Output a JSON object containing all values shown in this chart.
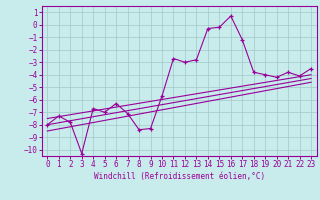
{
  "xlabel": "Windchill (Refroidissement éolien,°C)",
  "bg_color": "#c8ecec",
  "grid_color": "#a0c8c8",
  "line_color": "#990099",
  "xlim": [
    -0.5,
    23.5
  ],
  "ylim": [
    -10.5,
    1.5
  ],
  "xticks": [
    0,
    1,
    2,
    3,
    4,
    5,
    6,
    7,
    8,
    9,
    10,
    11,
    12,
    13,
    14,
    15,
    16,
    17,
    18,
    19,
    20,
    21,
    22,
    23
  ],
  "yticks": [
    1,
    0,
    -1,
    -2,
    -3,
    -4,
    -5,
    -6,
    -7,
    -8,
    -9,
    -10
  ],
  "main_x": [
    0,
    1,
    2,
    3,
    4,
    5,
    6,
    7,
    8,
    9,
    10,
    11,
    12,
    13,
    14,
    15,
    16,
    17,
    18,
    19,
    20,
    21,
    22,
    23
  ],
  "main_y": [
    -8.0,
    -7.3,
    -7.8,
    -10.3,
    -6.7,
    -7.0,
    -6.3,
    -7.1,
    -8.4,
    -8.3,
    -5.7,
    -2.7,
    -3.0,
    -2.8,
    -0.3,
    -0.2,
    0.7,
    -1.2,
    -3.8,
    -4.0,
    -4.2,
    -3.8,
    -4.1,
    -3.5
  ],
  "line1_x": [
    0,
    23
  ],
  "line1_y": [
    -7.5,
    -4.0
  ],
  "line2_x": [
    0,
    23
  ],
  "line2_y": [
    -8.0,
    -4.3
  ],
  "line3_x": [
    0,
    23
  ],
  "line3_y": [
    -8.5,
    -4.6
  ]
}
